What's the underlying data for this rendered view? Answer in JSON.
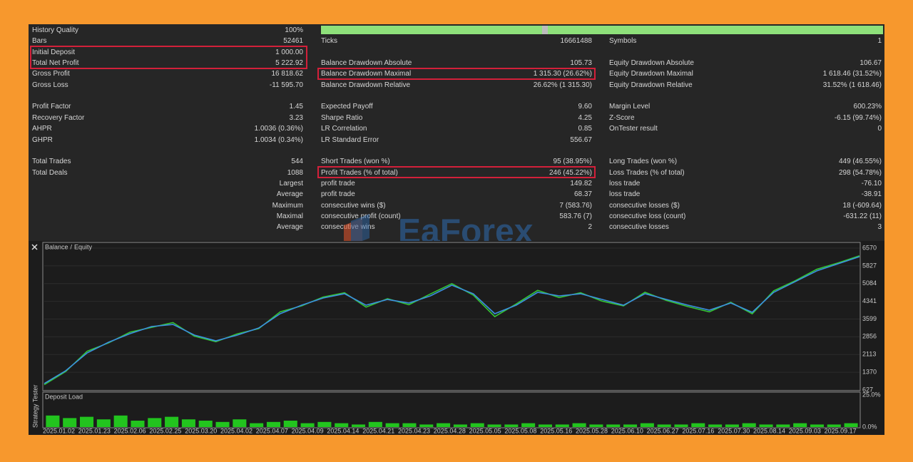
{
  "stats": {
    "groups": [
      [
        [
          {
            "label": "History Quality",
            "value": "100%"
          },
          null,
          null
        ],
        [
          {
            "label": "Bars",
            "value": "52461"
          },
          {
            "label": "Ticks",
            "value": "16661488"
          },
          {
            "label": "Symbols",
            "value": "1"
          }
        ],
        [
          {
            "label": "Initial Deposit",
            "value": "1 000.00"
          },
          null,
          null
        ],
        [
          {
            "label": "Total Net Profit",
            "value": "5 222.92"
          },
          {
            "label": "Balance Drawdown Absolute",
            "value": "105.73"
          },
          {
            "label": "Equity Drawdown Absolute",
            "value": "106.67"
          }
        ],
        [
          {
            "label": "Gross Profit",
            "value": "16 818.62"
          },
          {
            "label": "Balance Drawdown Maximal",
            "value": "1 315.30 (26.62%)"
          },
          {
            "label": "Equity Drawdown Maximal",
            "value": "1 618.46 (31.52%)"
          }
        ],
        [
          {
            "label": "Gross Loss",
            "value": "-11 595.70"
          },
          {
            "label": "Balance Drawdown Relative",
            "value": "26.62% (1 315.30)"
          },
          {
            "label": "Equity Drawdown Relative",
            "value": "31.52% (1 618.46)"
          }
        ]
      ],
      [
        [
          {
            "label": "Profit Factor",
            "value": "1.45"
          },
          {
            "label": "Expected Payoff",
            "value": "9.60"
          },
          {
            "label": "Margin Level",
            "value": "600.23%"
          }
        ],
        [
          {
            "label": "Recovery Factor",
            "value": "3.23"
          },
          {
            "label": "Sharpe Ratio",
            "value": "4.25"
          },
          {
            "label": "Z-Score",
            "value": "-6.15 (99.74%)"
          }
        ],
        [
          {
            "label": "AHPR",
            "value": "1.0036 (0.36%)"
          },
          {
            "label": "LR Correlation",
            "value": "0.85"
          },
          {
            "label": "OnTester result",
            "value": "0"
          }
        ],
        [
          {
            "label": "GHPR",
            "value": "1.0034 (0.34%)"
          },
          {
            "label": "LR Standard Error",
            "value": "556.67"
          },
          null
        ]
      ],
      [
        [
          {
            "label": "Total Trades",
            "value": "544"
          },
          {
            "label": "Short Trades (won %)",
            "value": "95 (38.95%)"
          },
          {
            "label": "Long Trades (won %)",
            "value": "449 (46.55%)"
          }
        ],
        [
          {
            "label": "Total Deals",
            "value": "1088"
          },
          {
            "label": "Profit Trades (% of total)",
            "value": "246 (45.22%)"
          },
          {
            "label": "Loss Trades (% of total)",
            "value": "298 (54.78%)"
          }
        ],
        [
          {
            "label": "Largest"
          },
          {
            "label": "profit trade",
            "value": "149.82"
          },
          {
            "label": "loss trade",
            "value": "-76.10"
          }
        ],
        [
          {
            "label": "Average"
          },
          {
            "label": "profit trade",
            "value": "68.37"
          },
          {
            "label": "loss trade",
            "value": "-38.91"
          }
        ],
        [
          {
            "label": "Maximum"
          },
          {
            "label": "consecutive wins ($)",
            "value": "7 (583.76)"
          },
          {
            "label": "consecutive losses ($)",
            "value": "18 (-609.64)"
          }
        ],
        [
          {
            "label": "Maximal"
          },
          {
            "label": "consecutive profit (count)",
            "value": "583.76 (7)"
          },
          {
            "label": "consecutive loss (count)",
            "value": "-631.22 (11)"
          }
        ],
        [
          {
            "label": "Average"
          },
          {
            "label": "consecutive wins",
            "value": "2"
          },
          {
            "label": "consecutive losses",
            "value": "3"
          }
        ]
      ]
    ]
  },
  "watermark": "EaForex",
  "tab_label": "Strategy Tester",
  "chart_data": [
    {
      "type": "line",
      "legend_separator": "/",
      "series": [
        {
          "name": "Balance",
          "color": "#3b8fe0",
          "values": [
            896,
            1433,
            2180,
            2628,
            2986,
            3285,
            3374,
            2926,
            2687,
            2926,
            3225,
            3822,
            4180,
            4479,
            4658,
            4180,
            4419,
            4270,
            4569,
            5016,
            4658,
            3822,
            4180,
            4718,
            4569,
            4658,
            4419,
            4180,
            4658,
            4419,
            4180,
            3971,
            4270,
            3882,
            4718,
            5165,
            5613,
            5912,
            6211
          ]
        },
        {
          "name": "Equity",
          "color": "#35c435",
          "values": [
            850,
            1400,
            2250,
            2600,
            3050,
            3250,
            3450,
            2880,
            2650,
            2980,
            3200,
            3900,
            4150,
            4520,
            4700,
            4100,
            4450,
            4200,
            4650,
            5080,
            4600,
            3700,
            4230,
            4800,
            4500,
            4700,
            4350,
            4150,
            4720,
            4380,
            4120,
            3900,
            4300,
            3820,
            4780,
            5200,
            5680,
            5950,
            6250
          ]
        }
      ],
      "xtick_labels": [
        "2025.01.02",
        "2025.01.23",
        "2025.02.06",
        "2025.02.25",
        "2025.03.20",
        "2025.04.02",
        "2025.04.07",
        "2025.04.09",
        "2025.04.14",
        "2025.04.21",
        "2025.04.23",
        "2025.04.28",
        "2025.05.05",
        "2025.05.08",
        "2025.05.16",
        "2025.05.28",
        "2025.06.10",
        "2025.06.27",
        "2025.07.16",
        "2025.07.30",
        "2025.08.14",
        "2025.09.03",
        "2025.09.17"
      ],
      "ylim": [
        627,
        6570
      ],
      "yticks": [
        6570,
        5827,
        5084,
        4341,
        3599,
        2856,
        2113,
        1370,
        627
      ],
      "grid": true
    },
    {
      "type": "bar",
      "title": "Deposit Load",
      "color": "#22c41e",
      "values": [
        9,
        7,
        8,
        6,
        9,
        5,
        7,
        8,
        6,
        5,
        4,
        6,
        3,
        4,
        5,
        3,
        4,
        3,
        2,
        4,
        3,
        3,
        2,
        3,
        2,
        3,
        2,
        2,
        3,
        2,
        2,
        3,
        2,
        2,
        2,
        3,
        2,
        2,
        3,
        2,
        2,
        3,
        2,
        2,
        3,
        2,
        2,
        3
      ],
      "ylim": [
        0,
        25
      ],
      "yticks": [
        {
          "value": 25,
          "label": "25.0%"
        },
        {
          "value": 0,
          "label": "0.0%"
        }
      ]
    }
  ]
}
